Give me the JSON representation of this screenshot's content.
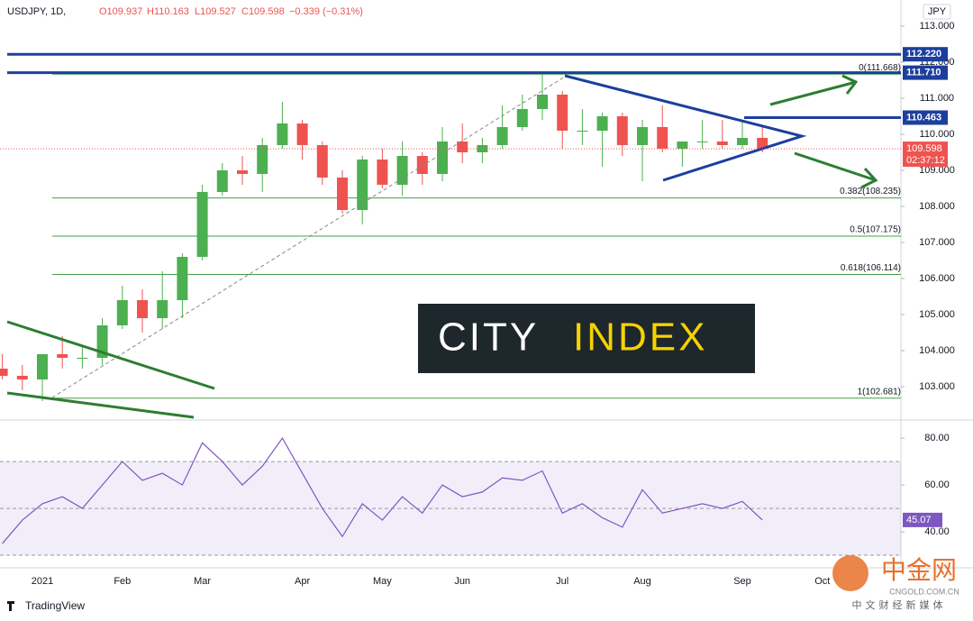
{
  "header": {
    "symbol": "USDJPY, 1D,",
    "open": "O109.937",
    "high": "H110.163",
    "low": "L109.527",
    "close": "C109.598",
    "change": "−0.339 (−0.31%)"
  },
  "currency": "JPY",
  "chart_data": [
    {
      "type": "candlestick",
      "categories": [
        null,
        null,
        "2021",
        null,
        null,
        null,
        "Feb",
        null,
        null,
        null,
        "Mar",
        null,
        null,
        null,
        null,
        "Apr",
        null,
        null,
        null,
        "May",
        null,
        null,
        null,
        "Jun",
        null,
        null,
        null,
        null,
        "Jul",
        null,
        null,
        null,
        "Aug",
        null,
        null,
        null,
        null,
        "Sep",
        null,
        null,
        null,
        "Oct"
      ],
      "open": [
        103.5,
        103.3,
        103.2,
        103.9,
        103.8,
        103.8,
        104.7,
        105.4,
        104.9,
        105.4,
        106.6,
        108.4,
        109.0,
        108.9,
        109.7,
        110.3,
        109.7,
        108.8,
        107.9,
        109.3,
        108.6,
        109.4,
        108.9,
        109.8,
        109.5,
        109.7,
        110.2,
        110.7,
        111.1,
        110.1,
        110.1,
        110.5,
        109.7,
        110.2,
        109.6,
        109.8,
        109.8,
        109.7,
        109.9,
        null,
        null,
        null
      ],
      "high": [
        103.9,
        103.6,
        103.9,
        104.4,
        104.1,
        104.9,
        105.8,
        105.7,
        106.2,
        106.7,
        108.6,
        109.2,
        109.4,
        109.9,
        110.9,
        110.4,
        109.8,
        109.0,
        109.4,
        109.6,
        109.8,
        109.5,
        110.2,
        110.3,
        109.9,
        110.8,
        111.1,
        111.7,
        111.2,
        110.7,
        110.6,
        110.6,
        110.4,
        110.8,
        109.8,
        110.4,
        110.4,
        110.4,
        110.2,
        null,
        null,
        null
      ],
      "low": [
        103.2,
        102.9,
        102.6,
        103.5,
        103.5,
        103.6,
        104.6,
        104.5,
        104.6,
        104.9,
        106.5,
        108.3,
        108.6,
        108.4,
        109.6,
        109.3,
        108.6,
        107.8,
        107.5,
        108.5,
        108.3,
        108.6,
        108.7,
        109.2,
        109.2,
        109.6,
        110.1,
        110.4,
        109.6,
        109.7,
        109.1,
        109.4,
        108.7,
        109.5,
        109.1,
        109.6,
        109.6,
        109.6,
        109.5,
        null,
        null,
        null
      ],
      "close": [
        103.3,
        103.2,
        103.9,
        103.8,
        103.8,
        104.7,
        105.4,
        104.9,
        105.4,
        106.6,
        108.4,
        109.0,
        108.9,
        109.7,
        110.3,
        109.7,
        108.8,
        107.9,
        109.3,
        108.6,
        109.4,
        108.9,
        109.8,
        109.5,
        109.7,
        110.2,
        110.7,
        111.1,
        110.1,
        110.1,
        110.5,
        109.7,
        110.2,
        109.6,
        109.8,
        109.8,
        109.7,
        109.9,
        109.6,
        null,
        null,
        null
      ],
      "up_color": "#4caf50",
      "down_color": "#ef5350",
      "ylim": [
        102.1,
        113.725
      ],
      "yticks": [
        {
          "value": 103,
          "label": "103.000"
        },
        {
          "value": 104,
          "label": "104.000"
        },
        {
          "value": 105,
          "label": "105.000"
        },
        {
          "value": 106,
          "label": "106.000"
        },
        {
          "value": 107,
          "label": "107.000"
        },
        {
          "value": 108,
          "label": "108.000"
        },
        {
          "value": 109,
          "label": "109.000"
        },
        {
          "value": 110,
          "label": "110.000"
        },
        {
          "value": 111,
          "label": "111.000"
        },
        {
          "value": 112,
          "label": "112.000"
        },
        {
          "value": 113,
          "label": "113.000"
        }
      ],
      "levels": [
        {
          "value": 112.22,
          "label": "112.220"
        },
        {
          "value": 111.71,
          "label": "111.710"
        },
        {
          "value": 110.463,
          "label": "110.463"
        }
      ],
      "level_color": "#1c3f9e",
      "fib": [
        {
          "value": 111.668,
          "label": "0(111.668)"
        },
        {
          "value": 108.235,
          "label": "0.382(108.235)"
        },
        {
          "value": 107.175,
          "label": "0.5(107.175)"
        },
        {
          "value": 106.114,
          "label": "0.618(106.114)"
        },
        {
          "value": 102.681,
          "label": "1(102.681)"
        }
      ],
      "fib_color": "#43a047",
      "last_price": {
        "value": 109.598,
        "label": "109.598"
      },
      "countdown": "02:37:12"
    },
    {
      "type": "line",
      "values": [
        35,
        45,
        52,
        55,
        50,
        60,
        70,
        62,
        65,
        60,
        78,
        70,
        60,
        68,
        80,
        65,
        50,
        38,
        52,
        45,
        55,
        48,
        60,
        55,
        57,
        63,
        62,
        66,
        48,
        52,
        46,
        42,
        58,
        48,
        50,
        52,
        50,
        53,
        45.07,
        null,
        null,
        null
      ],
      "last_label": "45.07",
      "color": "#7e57c2",
      "ylim": [
        25.4,
        86.2
      ],
      "yticks": [
        {
          "value": 40,
          "label": "40.00"
        },
        {
          "value": 60,
          "label": "60.00"
        },
        {
          "value": 80,
          "label": "80.00"
        }
      ],
      "band": [
        30,
        70
      ],
      "midline": 50
    }
  ],
  "watermark": {
    "logo_left": "CITY",
    "logo_right": "INDEX",
    "platform": "TradingView",
    "site": "中金网",
    "site_url": "CNGOLD.COM.CN",
    "site_tagline": "中文财经新媒体"
  }
}
